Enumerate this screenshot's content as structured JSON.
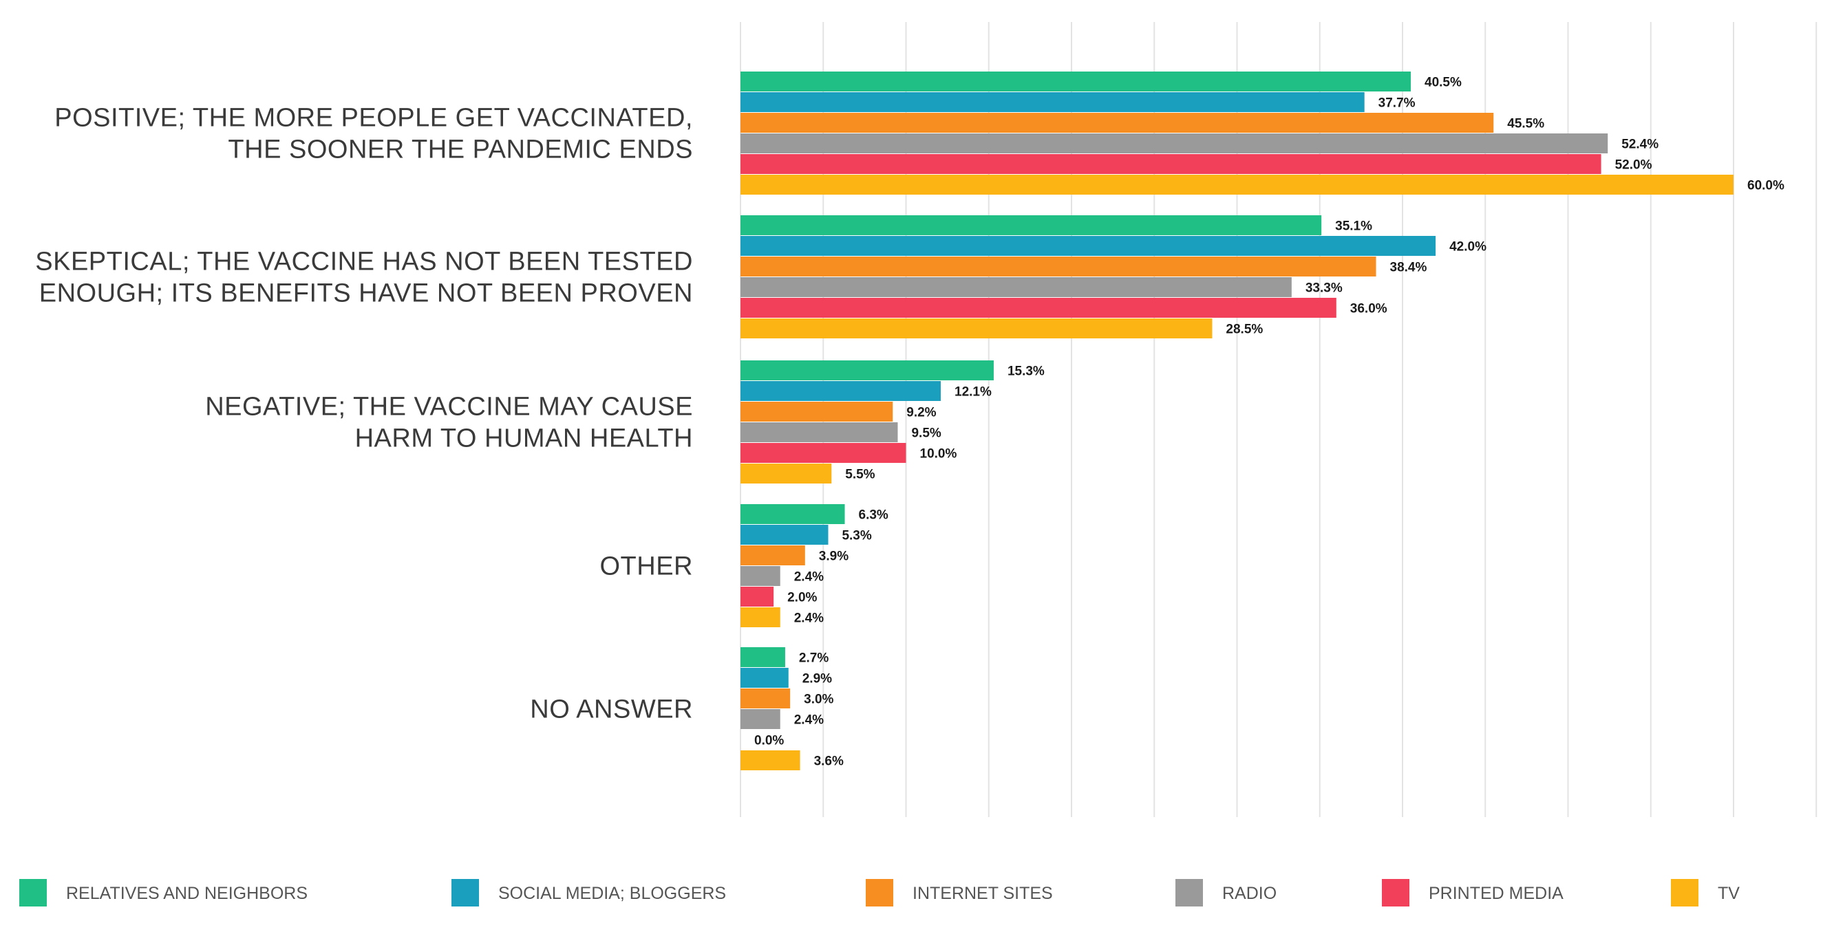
{
  "chart_data": {
    "type": "bar",
    "orientation": "horizontal",
    "categories": [
      [
        "POSITIVE; THE MORE PEOPLE GET VACCINATED,",
        "THE SOONER THE PANDEMIC ENDS"
      ],
      [
        "SKEPTICAL; THE VACCINE HAS NOT BEEN TESTED",
        "ENOUGH; ITS BENEFITS HAVE NOT BEEN PROVEN"
      ],
      [
        "NEGATIVE; THE VACCINE MAY CAUSE",
        "HARM TO HUMAN HEALTH"
      ],
      [
        "OTHER"
      ],
      [
        "NO ANSWER"
      ]
    ],
    "series": [
      {
        "name": "RELATIVES AND NEIGHBORS",
        "color": "#1fbf86",
        "values": [
          40.5,
          35.1,
          15.3,
          6.3,
          2.7
        ],
        "labels": [
          "40.5%",
          "35.1%",
          "15.3%",
          "6.3%",
          "2.7%"
        ]
      },
      {
        "name": "SOCIAL MEDIA; BLOGGERS",
        "color": "#1a9fbf",
        "values": [
          37.7,
          42.0,
          12.1,
          5.3,
          2.9
        ],
        "labels": [
          "37.7%",
          "42.0%",
          "12.1%",
          "5.3%",
          "2.9%"
        ]
      },
      {
        "name": "INTERNET SITES",
        "color": "#f78e22",
        "values": [
          45.5,
          38.4,
          9.2,
          3.9,
          3.0
        ],
        "labels": [
          "45.5%",
          "38.4%",
          "9.2%",
          "3.9%",
          "3.0%"
        ]
      },
      {
        "name": "RADIO",
        "color": "#9a9a9a",
        "values": [
          52.4,
          33.3,
          9.5,
          2.4,
          2.4
        ],
        "labels": [
          "52.4%",
          "33.3%",
          "9.5%",
          "2.4%",
          "2.4%"
        ]
      },
      {
        "name": "PRINTED MEDIA",
        "color": "#f2405a",
        "values": [
          52.0,
          36.0,
          10.0,
          2.0,
          0.0
        ],
        "labels": [
          "52.0%",
          "36.0%",
          "10.0%",
          "2.0%",
          "0.0%"
        ]
      },
      {
        "name": "TV",
        "color": "#fbb414",
        "values": [
          60.0,
          28.5,
          5.5,
          2.4,
          3.6
        ],
        "labels": [
          "60.0%",
          "28.5%",
          "5.5%",
          "2.4%",
          "3.6%"
        ]
      }
    ],
    "xlim": [
      0,
      65
    ],
    "grid_step": 5,
    "grid": true,
    "legend": "bottom"
  }
}
